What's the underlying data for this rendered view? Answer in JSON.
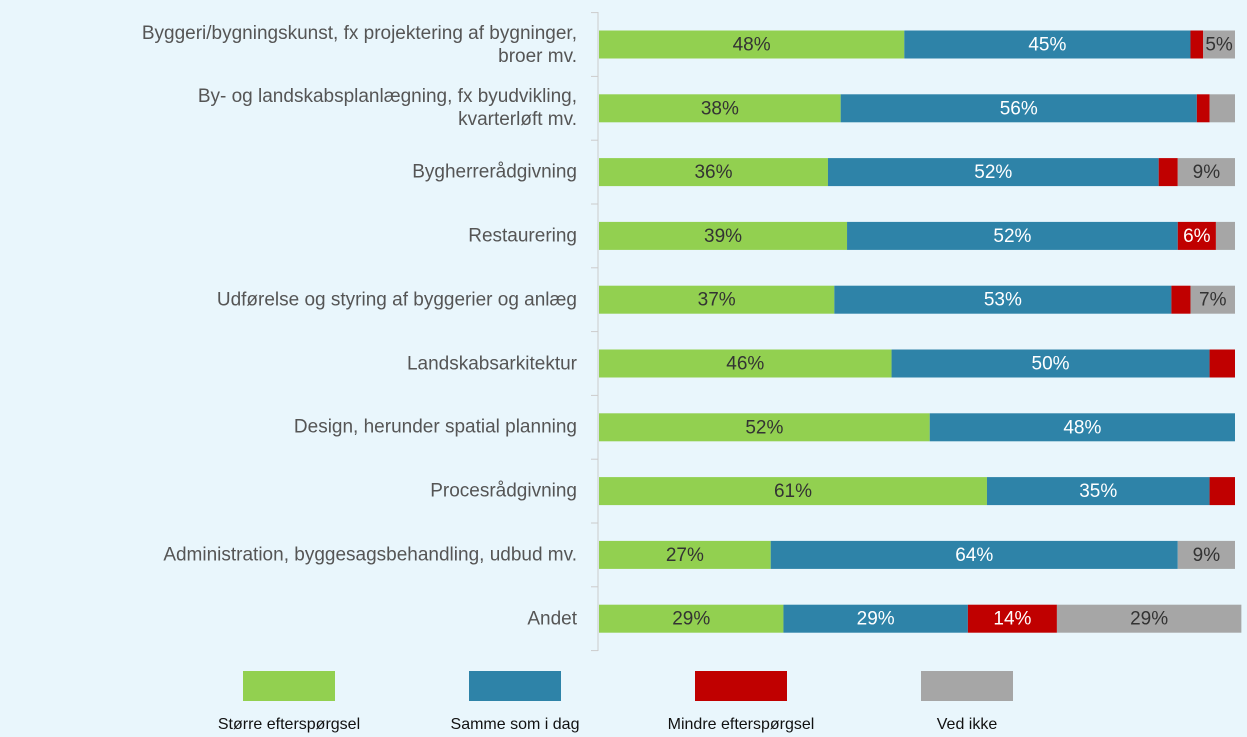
{
  "chart_data": {
    "type": "stacked_bar_horizontal",
    "categories": [
      "Byggeri/bygningskunst, fx projektering af bygninger,\nbroer mv.",
      "By- og landskabsplanlægning, fx byudvikling,\nkvarterløft mv.",
      "Bygherrerådgivning",
      "Restaurering",
      "Udførelse og styring af byggerier og anlæg",
      "Landskabsarkitektur",
      "Design, herunder spatial planning",
      "Procesrådgivning",
      "Administration, byggesagsbehandling, udbud mv.",
      "Andet"
    ],
    "series": [
      {
        "name": "Større efterspørgsel",
        "color": "#92d050",
        "values": [
          48,
          38,
          36,
          39,
          37,
          46,
          52,
          61,
          27,
          29
        ],
        "value_labels": [
          "48%",
          "38%",
          "36%",
          "39%",
          "37%",
          "46%",
          "52%",
          "61%",
          "27%",
          "29%"
        ]
      },
      {
        "name": "Samme som i dag",
        "color": "#2e83a8",
        "values": [
          45,
          56,
          52,
          52,
          53,
          50,
          48,
          35,
          64,
          29
        ],
        "value_labels": [
          "45%",
          "56%",
          "52%",
          "52%",
          "53%",
          "50%",
          "48%",
          "35%",
          "64%",
          "29%"
        ]
      },
      {
        "name": "Mindre efterspørgsel",
        "color": "#c00000",
        "values": [
          2,
          2,
          3,
          6,
          3,
          4,
          null,
          4,
          null,
          14
        ],
        "value_labels": [
          null,
          null,
          null,
          "6%",
          null,
          null,
          null,
          null,
          null,
          "14%"
        ]
      },
      {
        "name": "Ved ikke",
        "color": "#a6a6a6",
        "values": [
          5,
          4,
          9,
          3,
          7,
          null,
          null,
          null,
          9,
          29
        ],
        "value_labels": [
          "5%",
          null,
          "9%",
          null,
          "7%",
          null,
          null,
          null,
          "9%",
          "29%"
        ]
      }
    ],
    "legend": "bottom"
  }
}
